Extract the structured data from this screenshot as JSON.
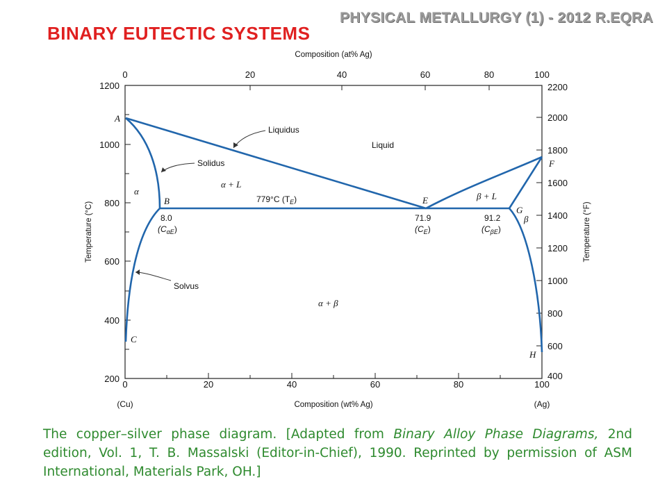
{
  "header": {
    "series_title": "PHYSICAL METALLURGY (1) - 2012 R.EQRA",
    "slide_title": "BINARY EUTECTIC SYSTEMS"
  },
  "diagram": {
    "top_axis_label": "Composition (at% Ag)",
    "bottom_axis_label": "Composition (wt% Ag)",
    "left_axis_label": "Temperature (°C)",
    "right_axis_label": "Temperature (°F)",
    "left_end_label": "(Cu)",
    "right_end_label": "(Ag)",
    "top_ticks": [
      "0",
      "20",
      "40",
      "60",
      "80",
      "100"
    ],
    "bottom_ticks": [
      "0",
      "20",
      "40",
      "60",
      "80",
      "100"
    ],
    "left_ticks": [
      "200",
      "400",
      "600",
      "800",
      "1000",
      "1200"
    ],
    "right_ticks": [
      "400",
      "600",
      "800",
      "1000",
      "1200",
      "1400",
      "1600",
      "1800",
      "2000",
      "2200"
    ],
    "points": {
      "A": "A",
      "B": "B",
      "C": "C",
      "E": "E",
      "F": "F",
      "G": "G",
      "H": "H"
    },
    "annotations": {
      "liquidus": "Liquidus",
      "solidus": "Solidus",
      "solvus": "Solvus",
      "liquid": "Liquid",
      "alpha": "α",
      "beta": "β",
      "alpha_plus_L": "α + L",
      "beta_plus_L": "β + L",
      "alpha_plus_beta": "α + β",
      "eutectic_temp": "779°C (T",
      "eutectic_temp_sub": "E",
      "eutectic_temp_close": ")",
      "c_alpha_e_value": "8.0",
      "c_alpha_e_open": "(C",
      "c_alpha_e_sub": "αE",
      "c_alpha_e_close": ")",
      "c_e_value": "71.9",
      "c_e_open": "(C",
      "c_e_sub": "E",
      "c_e_close": ")",
      "c_beta_e_value": "91.2",
      "c_beta_e_open": "(C",
      "c_beta_e_sub": "βE",
      "c_beta_e_close": ")"
    },
    "line_color": "#2166ac"
  },
  "caption": {
    "part1": "The copper–silver phase diagram. [Adapted from ",
    "italic": "Binary Alloy Phase Diagrams,",
    "part2": " 2nd edition, Vol. 1, T. B. Massalski (Editor-in-Chief), 1990. Reprinted by permission of ASM International, Materials Park, OH.]"
  }
}
